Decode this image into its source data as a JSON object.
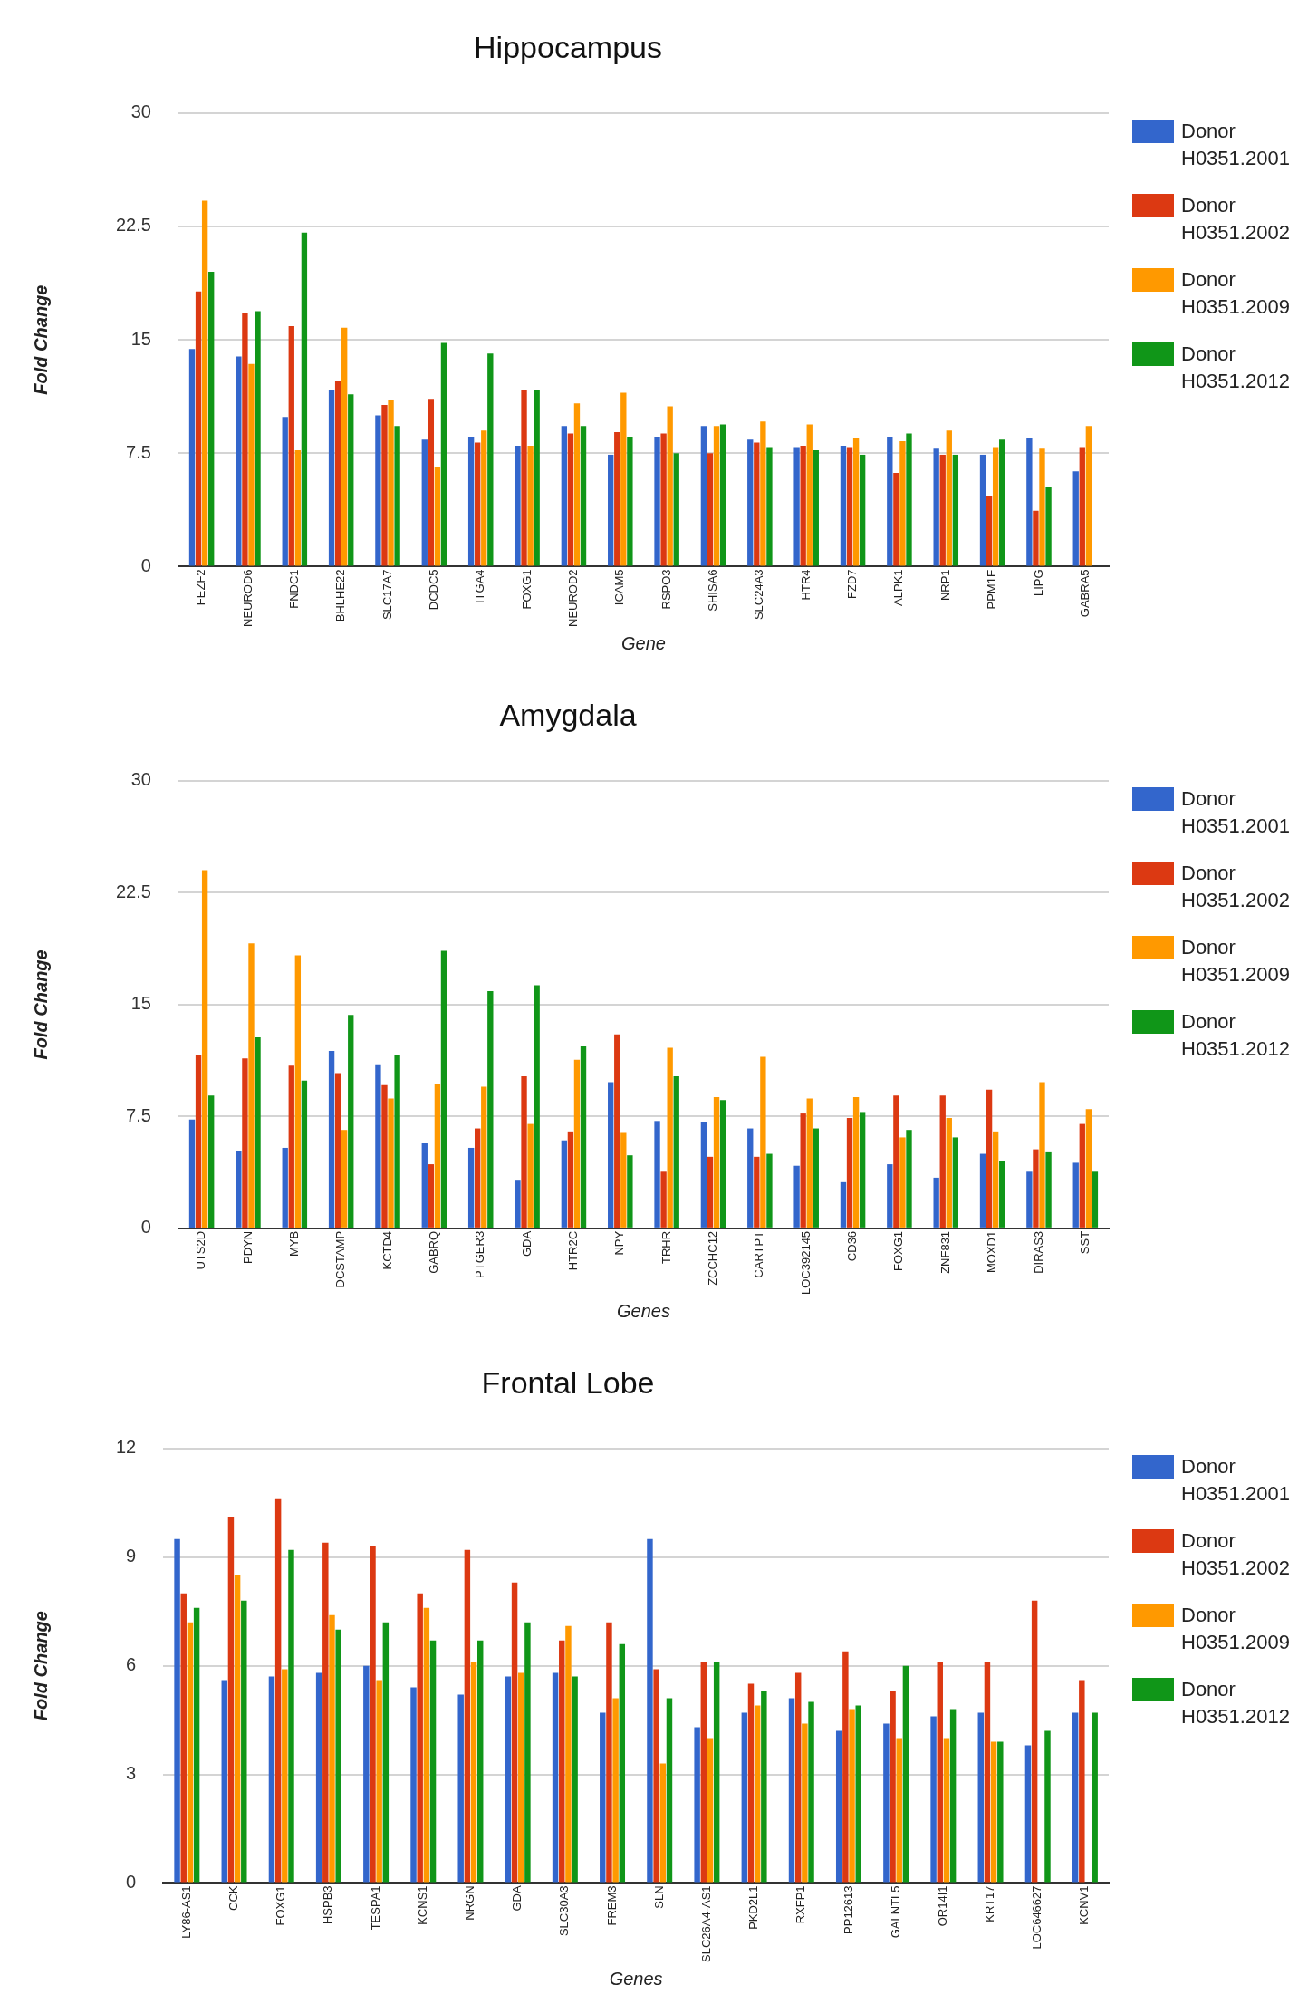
{
  "chart_data": [
    {
      "type": "bar",
      "title": "Hippocampus",
      "xlabel": "Gene",
      "ylabel": "Fold Change",
      "categories": [
        "FEZF2",
        "NEUROD6",
        "FNDC1",
        "BHLHE22",
        "SLC17A7",
        "DCDC5",
        "ITGA4",
        "FOXG1",
        "NEUROD2",
        "ICAM5",
        "RSPO3",
        "SHISA6",
        "SLC24A3",
        "HTR4",
        "FZD7",
        "ALPK1",
        "NRP1",
        "PPM1E",
        "LIPG",
        "GABRA5"
      ],
      "series": [
        {
          "name": "Donor H0351.2001",
          "color": "#3366cc",
          "values": [
            14.4,
            13.9,
            9.9,
            11.7,
            10.0,
            8.4,
            8.6,
            8.0,
            9.3,
            7.4,
            8.6,
            9.3,
            8.4,
            7.9,
            8.0,
            8.6,
            7.8,
            7.4,
            8.5,
            6.3
          ]
        },
        {
          "name": "Donor H0351.2002",
          "color": "#dc3912",
          "values": [
            18.2,
            16.8,
            15.9,
            12.3,
            10.7,
            11.1,
            8.2,
            11.7,
            8.8,
            8.9,
            8.8,
            7.5,
            8.2,
            8.0,
            7.9,
            6.2,
            7.4,
            4.7,
            3.7,
            7.9
          ]
        },
        {
          "name": "Donor H0351.2009",
          "color": "#ff9900",
          "values": [
            24.2,
            13.4,
            7.7,
            15.8,
            11.0,
            6.6,
            9.0,
            8.0,
            10.8,
            11.5,
            10.6,
            9.3,
            9.6,
            9.4,
            8.5,
            8.3,
            9.0,
            7.9,
            7.8,
            9.3
          ]
        },
        {
          "name": "Donor H0351.2012",
          "color": "#109618",
          "values": [
            19.5,
            16.9,
            22.1,
            11.4,
            9.3,
            14.8,
            14.1,
            11.7,
            9.3,
            8.6,
            7.5,
            9.4,
            7.9,
            7.7,
            7.4,
            8.8,
            7.4,
            8.4,
            5.3,
            null
          ]
        }
      ],
      "ylim": [
        0,
        30
      ],
      "yticks": [
        0,
        7.5,
        15,
        22.5,
        30
      ],
      "grid": "y",
      "legend": "right"
    },
    {
      "type": "bar",
      "title": "Amygdala",
      "xlabel": "Genes",
      "ylabel": "Fold Change",
      "categories": [
        "UTS2D",
        "PDYN",
        "MYB",
        "DCSTAMP",
        "KCTD4",
        "GABRQ",
        "PTGER3",
        "GDA",
        "HTR2C",
        "NPY",
        "TRHR",
        "ZCCHC12",
        "CARTPT",
        "LOC392145",
        "CD36",
        "FOXG1",
        "ZNF831",
        "MOXD1",
        "DIRAS3",
        "SST"
      ],
      "series": [
        {
          "name": "Donor H0351.2001",
          "color": "#3366cc",
          "values": [
            7.3,
            5.2,
            5.4,
            11.9,
            11.0,
            5.7,
            5.4,
            3.2,
            5.9,
            9.8,
            7.2,
            7.1,
            6.7,
            4.2,
            3.1,
            4.3,
            3.4,
            5.0,
            3.8,
            4.4
          ]
        },
        {
          "name": "Donor H0351.2002",
          "color": "#dc3912",
          "values": [
            11.6,
            11.4,
            10.9,
            10.4,
            9.6,
            4.3,
            6.7,
            10.2,
            6.5,
            13.0,
            3.8,
            4.8,
            4.8,
            7.7,
            7.4,
            8.9,
            8.9,
            9.3,
            5.3,
            7.0
          ]
        },
        {
          "name": "Donor H0351.2009",
          "color": "#ff9900",
          "values": [
            24.0,
            19.1,
            18.3,
            6.6,
            8.7,
            9.7,
            9.5,
            7.0,
            11.3,
            6.4,
            12.1,
            8.8,
            11.5,
            8.7,
            8.8,
            6.1,
            7.4,
            6.5,
            9.8,
            8.0
          ]
        },
        {
          "name": "Donor H0351.2012",
          "color": "#109618",
          "values": [
            8.9,
            12.8,
            9.9,
            14.3,
            11.6,
            18.6,
            15.9,
            16.3,
            12.2,
            4.9,
            10.2,
            8.6,
            5.0,
            6.7,
            7.8,
            6.6,
            6.1,
            4.5,
            5.1,
            3.8
          ]
        }
      ],
      "ylim": [
        0,
        30
      ],
      "yticks": [
        0,
        7.5,
        15,
        22.5,
        30
      ],
      "grid": "y",
      "legend": "right"
    },
    {
      "type": "bar",
      "title": "Frontal Lobe",
      "xlabel": "Genes",
      "ylabel": "Fold Change",
      "categories": [
        "LY86-AS1",
        "CCK",
        "FOXG1",
        "HSPB3",
        "TESPA1",
        "KCNS1",
        "NRGN",
        "GDA",
        "SLC30A3",
        "FREM3",
        "SLN",
        "SLC26A4-AS1",
        "PKD2L1",
        "RXFP1",
        "PP12613",
        "GALNTL5",
        "OR14I1",
        "KRT17",
        "LOC646627",
        "KCNV1"
      ],
      "series": [
        {
          "name": "Donor H0351.2001",
          "color": "#3366cc",
          "values": [
            9.5,
            5.6,
            5.7,
            5.8,
            6.0,
            5.4,
            5.2,
            5.7,
            5.8,
            4.7,
            9.5,
            4.3,
            4.7,
            5.1,
            4.2,
            4.4,
            4.6,
            4.7,
            3.8,
            4.7
          ]
        },
        {
          "name": "Donor H0351.2002",
          "color": "#dc3912",
          "values": [
            8.0,
            10.1,
            10.6,
            9.4,
            9.3,
            8.0,
            9.2,
            8.3,
            6.7,
            7.2,
            5.9,
            6.1,
            5.5,
            5.8,
            6.4,
            5.3,
            6.1,
            6.1,
            7.8,
            5.6
          ]
        },
        {
          "name": "Donor H0351.2009",
          "color": "#ff9900",
          "values": [
            7.2,
            8.5,
            5.9,
            7.4,
            5.6,
            7.6,
            6.1,
            5.8,
            7.1,
            5.1,
            3.3,
            4.0,
            4.9,
            4.4,
            4.8,
            4.0,
            4.0,
            3.9,
            null,
            null
          ]
        },
        {
          "name": "Donor H0351.2012",
          "color": "#109618",
          "values": [
            7.6,
            7.8,
            9.2,
            7.0,
            7.2,
            6.7,
            6.7,
            7.2,
            5.7,
            6.6,
            5.1,
            6.1,
            5.3,
            5.0,
            4.9,
            6.0,
            4.8,
            3.9,
            4.2,
            4.7
          ]
        }
      ],
      "ylim": [
        0,
        12
      ],
      "yticks": [
        0,
        3,
        6,
        9,
        12
      ],
      "grid": "y",
      "legend": "right"
    }
  ]
}
